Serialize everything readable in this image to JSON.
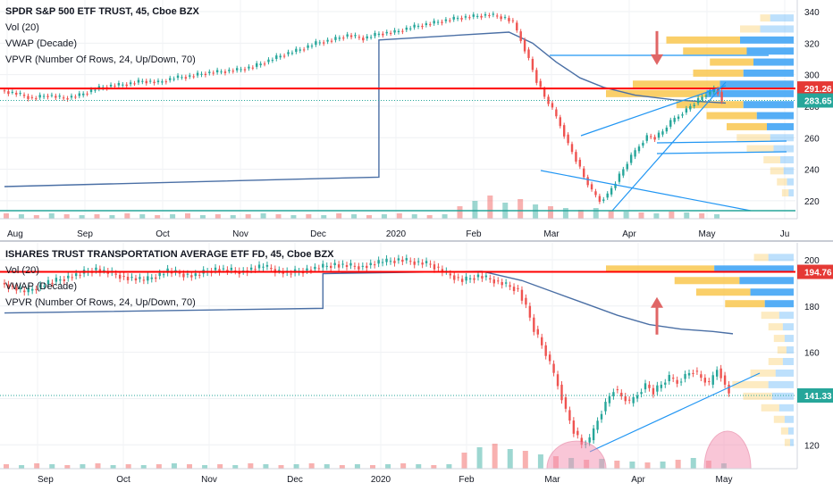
{
  "chart_data": [
    {
      "type": "candlestick",
      "title": "SPDR S&P 500 ETF TRUST, 45, Cboe BZX",
      "indicators": [
        "Vol (20)",
        "VWAP (Decade)",
        "VPVR (Number Of Rows, 24, Up/Down, 70)"
      ],
      "x_ticks": [
        "Aug",
        "Sep",
        "Oct",
        "Nov",
        "Dec",
        "2020",
        "Feb",
        "Mar",
        "Apr",
        "May",
        "Ju"
      ],
      "y_ticks": [
        340,
        320,
        300,
        280,
        260,
        240,
        220
      ],
      "ylim": [
        212,
        344
      ],
      "price_labels": [
        {
          "value": 291.26,
          "text": "291.26",
          "color": "#e53935"
        },
        {
          "value": 283.65,
          "text": "283.65",
          "color": "#26a69a"
        }
      ],
      "horizontal_line": 291.26,
      "price_path": [
        [
          0,
          290
        ],
        [
          4,
          288
        ],
        [
          8,
          285
        ],
        [
          12,
          287
        ],
        [
          16,
          285
        ],
        [
          20,
          287
        ],
        [
          24,
          291
        ],
        [
          28,
          293
        ],
        [
          32,
          294
        ],
        [
          36,
          296
        ],
        [
          40,
          295
        ],
        [
          44,
          298
        ],
        [
          48,
          299
        ],
        [
          52,
          301
        ],
        [
          56,
          302
        ],
        [
          60,
          303
        ],
        [
          64,
          305
        ],
        [
          68,
          309
        ],
        [
          72,
          313
        ],
        [
          76,
          316
        ],
        [
          80,
          320
        ],
        [
          84,
          322
        ],
        [
          88,
          325
        ],
        [
          92,
          323
        ],
        [
          96,
          326
        ],
        [
          100,
          327
        ],
        [
          104,
          330
        ],
        [
          108,
          332
        ],
        [
          112,
          334
        ],
        [
          116,
          336
        ],
        [
          120,
          337
        ],
        [
          124,
          338
        ],
        [
          128,
          336
        ],
        [
          130,
          333
        ],
        [
          132,
          322
        ],
        [
          134,
          310
        ],
        [
          136,
          296
        ],
        [
          138,
          286
        ],
        [
          140,
          278
        ],
        [
          142,
          268
        ],
        [
          144,
          256
        ],
        [
          146,
          246
        ],
        [
          148,
          235
        ],
        [
          150,
          226
        ],
        [
          152,
          220
        ],
        [
          154,
          224
        ],
        [
          156,
          232
        ],
        [
          158,
          240
        ],
        [
          160,
          248
        ],
        [
          162,
          255
        ],
        [
          164,
          261
        ],
        [
          166,
          260
        ],
        [
          168,
          264
        ],
        [
          170,
          270
        ],
        [
          172,
          274
        ],
        [
          174,
          278
        ],
        [
          176,
          282
        ],
        [
          178,
          286
        ],
        [
          180,
          289
        ],
        [
          181,
          291
        ],
        [
          182,
          289
        ],
        [
          183,
          283
        ]
      ],
      "vwap_path": [
        [
          0,
          229
        ],
        [
          95,
          235
        ],
        [
          95,
          322
        ],
        [
          128,
          327
        ],
        [
          134,
          320
        ],
        [
          140,
          308
        ],
        [
          146,
          298
        ],
        [
          152,
          292
        ],
        [
          160,
          287
        ],
        [
          170,
          284
        ],
        [
          183,
          282
        ]
      ],
      "volume_heights": [
        6,
        5,
        4,
        6,
        5,
        4,
        5,
        4,
        6,
        5,
        4,
        5,
        6,
        4,
        5,
        4,
        5,
        6,
        5,
        4,
        5,
        4,
        6,
        5,
        4,
        5,
        6,
        5,
        4,
        5,
        14,
        20,
        26,
        18,
        22,
        16,
        14,
        12,
        10,
        12,
        9,
        8,
        7,
        6,
        8,
        7,
        6,
        5
      ],
      "volume_profile": [
        {
          "price": 336,
          "up": 6,
          "down": 14
        },
        {
          "price": 329,
          "up": 12,
          "down": 20
        },
        {
          "price": 322,
          "up": 44,
          "down": 32
        },
        {
          "price": 315,
          "up": 38,
          "down": 28
        },
        {
          "price": 308,
          "up": 26,
          "down": 24
        },
        {
          "price": 301,
          "up": 30,
          "down": 30
        },
        {
          "price": 294,
          "up": 52,
          "down": 44
        },
        {
          "price": 288,
          "up": 60,
          "down": 52
        },
        {
          "price": 281,
          "up": 40,
          "down": 30
        },
        {
          "price": 274,
          "up": 30,
          "down": 22
        },
        {
          "price": 267,
          "up": 24,
          "down": 16
        },
        {
          "price": 260,
          "up": 20,
          "down": 14
        },
        {
          "price": 253,
          "up": 16,
          "down": 12
        },
        {
          "price": 246,
          "up": 10,
          "down": 8
        },
        {
          "price": 239,
          "up": 8,
          "down": 6
        },
        {
          "price": 232,
          "up": 6,
          "down": 4
        },
        {
          "price": 225,
          "up": 4,
          "down": 3
        }
      ],
      "annotation": {
        "type": "arrow",
        "direction": "down",
        "price": 305
      }
    },
    {
      "type": "candlestick",
      "title": "ISHARES TRUST TRANSPORTATION AVERAGE ETF FD, 45, Cboe BZX",
      "indicators": [
        "Vol (20)",
        "VWAP (Decade)",
        "VPVR (Number Of Rows, 24, Up/Down, 70)"
      ],
      "x_ticks": [
        "Sep",
        "Oct",
        "Nov",
        "Dec",
        "2020",
        "Feb",
        "Mar",
        "Apr",
        "May"
      ],
      "y_ticks": [
        200,
        180,
        160,
        140,
        120
      ],
      "ylim": [
        112,
        205
      ],
      "price_labels": [
        {
          "value": 194.76,
          "text": "194.76",
          "color": "#e53935"
        },
        {
          "value": 141.33,
          "text": "141.33",
          "color": "#26a69a"
        }
      ],
      "horizontal_line": 194.76,
      "price_path": [
        [
          0,
          190
        ],
        [
          6,
          186
        ],
        [
          12,
          190
        ],
        [
          18,
          193
        ],
        [
          24,
          196
        ],
        [
          30,
          193
        ],
        [
          36,
          191
        ],
        [
          42,
          195
        ],
        [
          48,
          193
        ],
        [
          54,
          196
        ],
        [
          60,
          195
        ],
        [
          66,
          197
        ],
        [
          72,
          194
        ],
        [
          78,
          196
        ],
        [
          84,
          198
        ],
        [
          90,
          197
        ],
        [
          96,
          199
        ],
        [
          100,
          200
        ],
        [
          104,
          199
        ],
        [
          108,
          198
        ],
        [
          112,
          194
        ],
        [
          116,
          191
        ],
        [
          120,
          193
        ],
        [
          124,
          191
        ],
        [
          130,
          187
        ],
        [
          132,
          180
        ],
        [
          134,
          170
        ],
        [
          136,
          163
        ],
        [
          138,
          155
        ],
        [
          140,
          146
        ],
        [
          142,
          135
        ],
        [
          144,
          126
        ],
        [
          146,
          120
        ],
        [
          148,
          122
        ],
        [
          150,
          131
        ],
        [
          152,
          138
        ],
        [
          154,
          144
        ],
        [
          156,
          141
        ],
        [
          158,
          138
        ],
        [
          160,
          142
        ],
        [
          162,
          146
        ],
        [
          164,
          143
        ],
        [
          166,
          146
        ],
        [
          168,
          149
        ],
        [
          170,
          147
        ],
        [
          172,
          150
        ],
        [
          174,
          152
        ],
        [
          176,
          149
        ],
        [
          178,
          146
        ],
        [
          180,
          153
        ],
        [
          181,
          150
        ],
        [
          182,
          146
        ],
        [
          183,
          141
        ]
      ],
      "vwap_path": [
        [
          0,
          177
        ],
        [
          80,
          179
        ],
        [
          80,
          194
        ],
        [
          120,
          195
        ],
        [
          130,
          191
        ],
        [
          138,
          186
        ],
        [
          146,
          181
        ],
        [
          154,
          176
        ],
        [
          162,
          172
        ],
        [
          170,
          170
        ],
        [
          178,
          169
        ],
        [
          183,
          168
        ]
      ],
      "volume_heights": [
        5,
        4,
        6,
        5,
        4,
        5,
        6,
        4,
        5,
        4,
        5,
        6,
        5,
        4,
        5,
        4,
        6,
        5,
        4,
        5,
        6,
        5,
        4,
        5,
        4,
        5,
        6,
        5,
        4,
        5,
        18,
        24,
        28,
        22,
        20,
        16,
        14,
        12,
        10,
        11,
        9,
        8,
        7,
        8,
        10,
        12,
        9,
        6
      ],
      "volume_profile": [
        {
          "price": 201,
          "up": 8,
          "down": 14
        },
        {
          "price": 196,
          "up": 60,
          "down": 44
        },
        {
          "price": 191,
          "up": 36,
          "down": 30
        },
        {
          "price": 186,
          "up": 30,
          "down": 24
        },
        {
          "price": 181,
          "up": 22,
          "down": 16
        },
        {
          "price": 176,
          "up": 10,
          "down": 8
        },
        {
          "price": 171,
          "up": 8,
          "down": 6
        },
        {
          "price": 166,
          "up": 6,
          "down": 5
        },
        {
          "price": 161,
          "up": 5,
          "down": 4
        },
        {
          "price": 156,
          "up": 8,
          "down": 6
        },
        {
          "price": 151,
          "up": 14,
          "down": 10
        },
        {
          "price": 146,
          "up": 20,
          "down": 14
        },
        {
          "price": 141,
          "up": 16,
          "down": 12
        },
        {
          "price": 136,
          "up": 10,
          "down": 8
        },
        {
          "price": 131,
          "up": 6,
          "down": 5
        },
        {
          "price": 126,
          "up": 4,
          "down": 3
        },
        {
          "price": 121,
          "up": 3,
          "down": 2
        }
      ],
      "annotation": {
        "type": "arrow",
        "direction": "up",
        "price": 180
      }
    }
  ],
  "colors": {
    "up": "#26a69a",
    "down": "#ef5350",
    "vwap": "#4a6fa5",
    "trend": "#2196f3",
    "vp_up": "#f9c74f",
    "vp_down": "#42a5f5",
    "redline": "#ff0000",
    "highlight": "#f48fb1"
  }
}
